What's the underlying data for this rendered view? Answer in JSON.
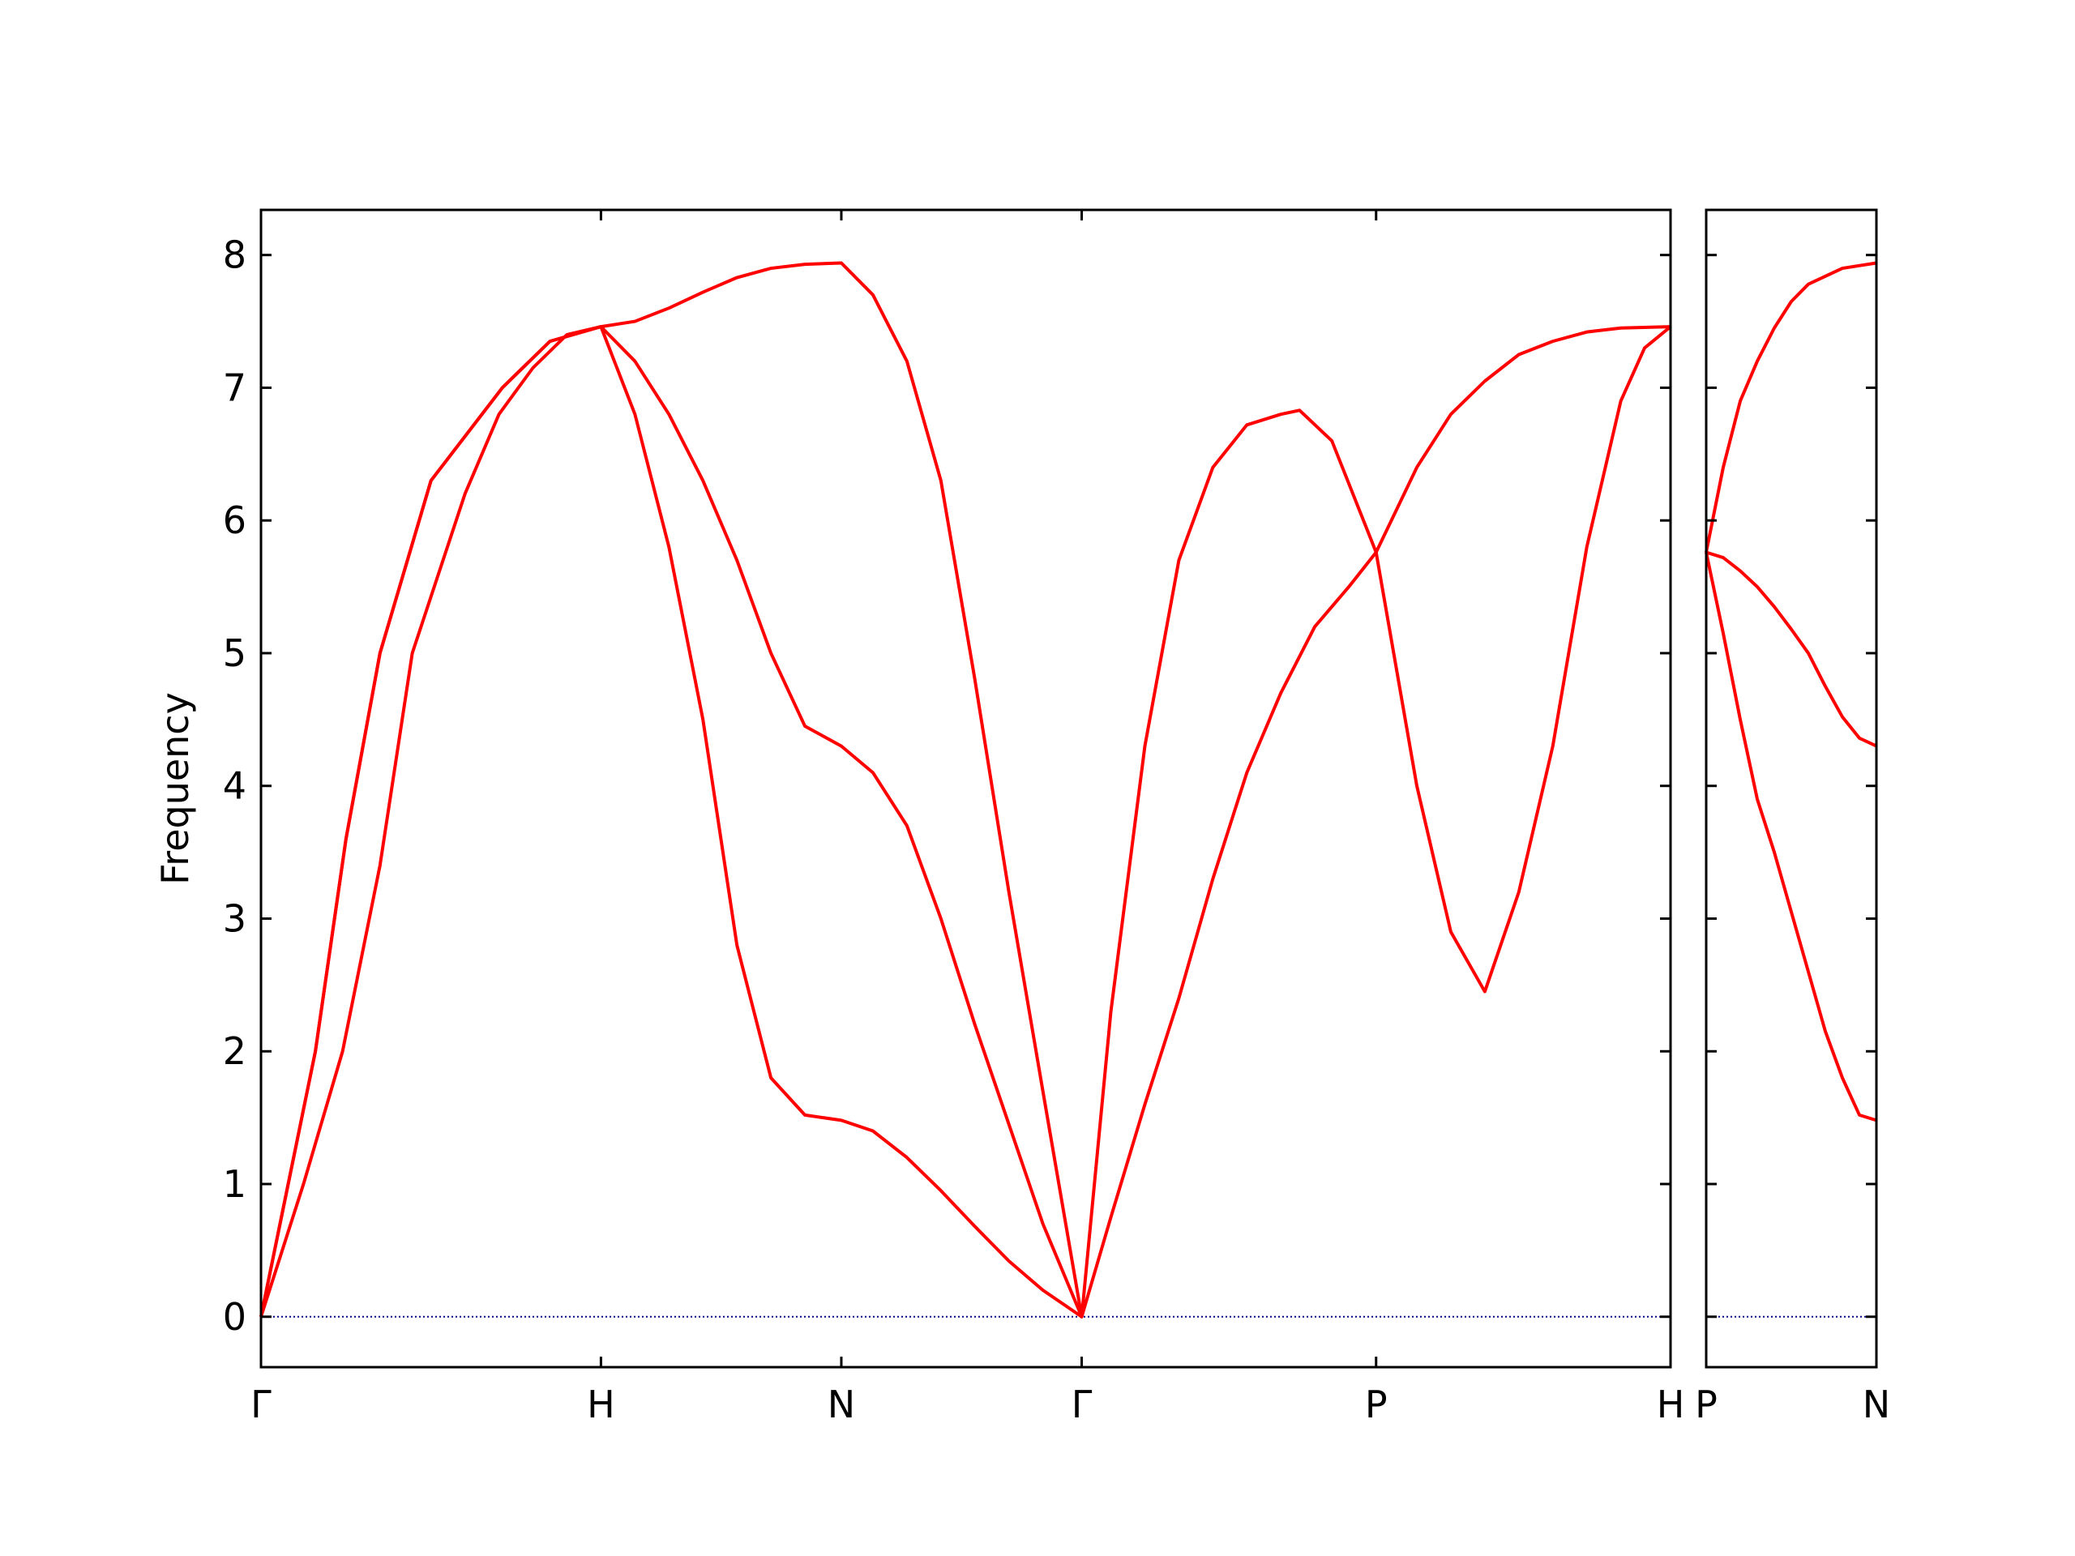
{
  "chart_data": [
    {
      "type": "line",
      "ylabel": "Frequency",
      "xlim": [
        0,
        4.1463
      ],
      "ylim": [
        -0.38,
        8.34
      ],
      "xticks": [
        {
          "value": 0,
          "label": "Γ"
        },
        {
          "value": 1,
          "label": "H"
        },
        {
          "value": 1.7071,
          "label": "N"
        },
        {
          "value": 2.4142,
          "label": "Γ"
        },
        {
          "value": 3.2802,
          "label": "P"
        },
        {
          "value": 4.1463,
          "label": "H"
        }
      ],
      "yticks": [
        0,
        1,
        2,
        3,
        4,
        5,
        6,
        7,
        8
      ],
      "ytick_labels": true,
      "hline": 0,
      "hline_color": "#00008b",
      "series": [
        {
          "color": "#ff0000",
          "x": [
            0,
            0.16,
            0.25,
            0.35,
            0.5,
            0.71,
            0.85,
            1,
            1.1,
            1.2,
            1.3,
            1.4,
            1.5,
            1.6,
            1.7071,
            1.8,
            1.9,
            2.0,
            2.1,
            2.2,
            2.3,
            2.4142,
            2.5,
            2.6,
            2.7,
            2.8,
            2.9,
            3.0,
            3.055,
            3.15,
            3.2802,
            3.4,
            3.5,
            3.6,
            3.7,
            3.8,
            3.9,
            4.0,
            4.07,
            4.1463
          ],
          "values": [
            0,
            2,
            3.6,
            5,
            6.3,
            7,
            7.35,
            7.46,
            7.5,
            7.6,
            7.72,
            7.83,
            7.9,
            7.93,
            7.94,
            7.7,
            7.2,
            6.3,
            4.8,
            3.2,
            1.7,
            0,
            2.3,
            4.3,
            5.7,
            6.4,
            6.72,
            6.8,
            6.83,
            6.6,
            5.76,
            4.0,
            2.9,
            2.45,
            3.2,
            4.3,
            5.8,
            6.9,
            7.3,
            7.46
          ]
        },
        {
          "color": "#ff0000",
          "x": [
            0,
            0.125,
            0.24,
            0.35,
            0.445,
            0.6,
            0.7,
            0.8,
            0.9,
            1,
            1.1,
            1.2,
            1.3,
            1.4,
            1.5,
            1.6,
            1.7071,
            1.8,
            1.9,
            2.0,
            2.1,
            2.2,
            2.3,
            2.4142,
            2.5,
            2.6,
            2.7,
            2.8,
            2.9,
            3.0,
            3.1,
            3.2,
            3.2802,
            3.4,
            3.5,
            3.6,
            3.7,
            3.8,
            3.9,
            4.0,
            4.1463
          ],
          "values": [
            0,
            1,
            2,
            3.4,
            5,
            6.2,
            6.8,
            7.15,
            7.4,
            7.46,
            7.2,
            6.8,
            6.3,
            5.7,
            5.0,
            4.45,
            4.3,
            4.1,
            3.7,
            3.0,
            2.2,
            1.45,
            0.7,
            0,
            0.75,
            1.6,
            2.4,
            3.3,
            4.1,
            4.7,
            5.2,
            5.5,
            5.76,
            6.4,
            6.8,
            7.05,
            7.25,
            7.35,
            7.42,
            7.45,
            7.46
          ]
        },
        {
          "color": "#ff0000",
          "x": [
            0,
            0.16,
            0.25,
            0.35,
            0.5,
            0.71,
            0.85,
            1,
            1.1,
            1.2,
            1.3,
            1.4,
            1.5,
            1.6,
            1.7071,
            1.8,
            1.9,
            2.0,
            2.1,
            2.2,
            2.3,
            2.4142
          ],
          "values": [
            0,
            2,
            3.6,
            5,
            6.3,
            7,
            7.35,
            7.46,
            6.8,
            5.8,
            4.5,
            2.8,
            1.8,
            1.52,
            1.48,
            1.4,
            1.2,
            0.95,
            0.68,
            0.42,
            0.2,
            0
          ]
        }
      ]
    },
    {
      "type": "line",
      "xlim": [
        0,
        0.5
      ],
      "ylim": [
        -0.38,
        8.34
      ],
      "xticks": [
        {
          "value": 0,
          "label": "P"
        },
        {
          "value": 0.5,
          "label": "N"
        }
      ],
      "yticks": [
        0,
        1,
        2,
        3,
        4,
        5,
        6,
        7,
        8
      ],
      "ytick_labels": false,
      "hline": 0,
      "hline_color": "#00008b",
      "series": [
        {
          "color": "#ff0000",
          "x": [
            0,
            0.05,
            0.1,
            0.15,
            0.2,
            0.25,
            0.3,
            0.4,
            0.5
          ],
          "values": [
            5.76,
            6.4,
            6.9,
            7.2,
            7.45,
            7.65,
            7.78,
            7.9,
            7.94
          ]
        },
        {
          "color": "#ff0000",
          "x": [
            0,
            0.05,
            0.1,
            0.15,
            0.2,
            0.25,
            0.3,
            0.35,
            0.4,
            0.45,
            0.5
          ],
          "values": [
            5.76,
            5.72,
            5.62,
            5.5,
            5.35,
            5.18,
            5.0,
            4.75,
            4.52,
            4.36,
            4.3
          ]
        },
        {
          "color": "#ff0000",
          "x": [
            0,
            0.05,
            0.1,
            0.15,
            0.2,
            0.25,
            0.3,
            0.35,
            0.4,
            0.45,
            0.5
          ],
          "values": [
            5.76,
            5.15,
            4.5,
            3.9,
            3.5,
            3.05,
            2.6,
            2.15,
            1.8,
            1.52,
            1.48
          ]
        }
      ]
    }
  ]
}
